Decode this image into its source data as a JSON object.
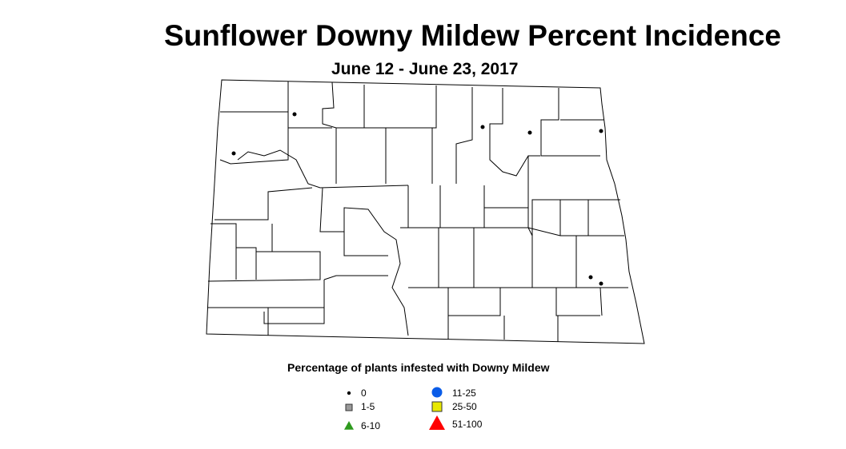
{
  "title": "Sunflower Downy Mildew Percent Incidence",
  "subtitle": "June 12 - June 23, 2017",
  "legend": {
    "title": "Percentage of plants infested with Downy Mildew",
    "items": [
      {
        "label": "0",
        "symbol": "dot",
        "color": "#000000"
      },
      {
        "label": "1-5",
        "symbol": "square",
        "color": "#9a9a9a"
      },
      {
        "label": "6-10",
        "symbol": "triangle",
        "color": "#2e9a1e"
      },
      {
        "label": "11-25",
        "symbol": "circle",
        "color": "#0a5ce8"
      },
      {
        "label": "25-50",
        "symbol": "square",
        "color": "#e8e800"
      },
      {
        "label": "51-100",
        "symbol": "triangle",
        "color": "#ff0000"
      }
    ]
  },
  "observations": [
    {
      "category": "0"
    },
    {
      "category": "0"
    },
    {
      "category": "0"
    },
    {
      "category": "0"
    },
    {
      "category": "0"
    },
    {
      "category": "0"
    },
    {
      "category": "0"
    }
  ]
}
